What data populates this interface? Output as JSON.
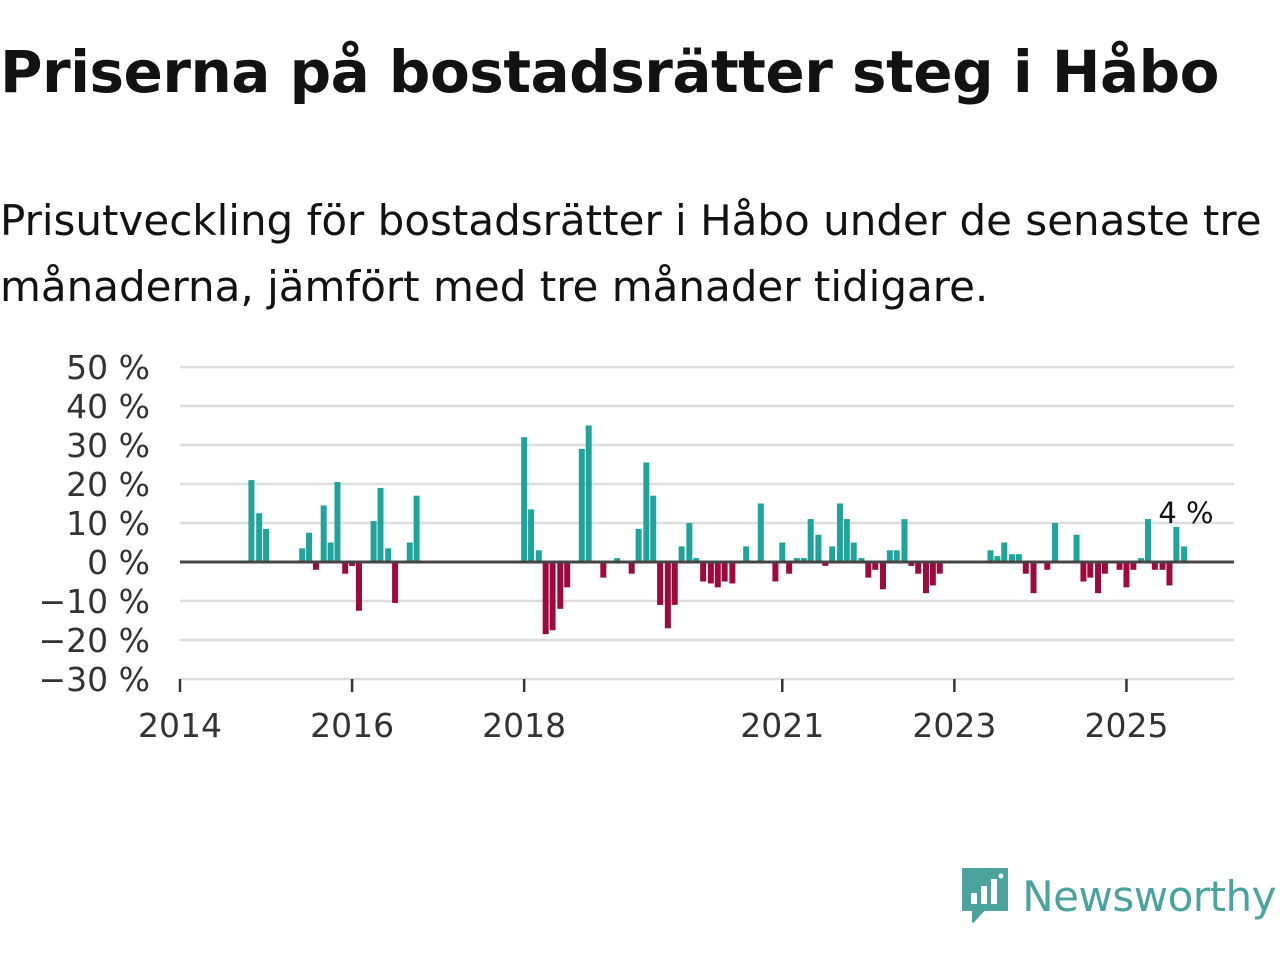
{
  "title": "Priserna på bostadsrätter steg i Håbo",
  "subtitle": "Prisutveckling för bostadsrätter i Håbo under de senaste tre månaderna, jämfört med tre månader tidigare.",
  "logo": {
    "text": "Newsworthy",
    "icon": "newsworthy-logo-icon"
  },
  "colors": {
    "positive": "#20a39a",
    "negative": "#9e0a3e",
    "grid": "#dddddd",
    "zero_line": "#444444",
    "brand": "#4aa39c"
  },
  "chart_data": {
    "type": "bar",
    "title": "Priserna på bostadsrätter steg i Håbo",
    "xlabel": "",
    "ylabel": "",
    "ylim": [
      -30,
      50
    ],
    "yticks": [
      50,
      40,
      30,
      20,
      10,
      0,
      -10,
      -20,
      -30
    ],
    "ytick_labels": [
      "50 %",
      "40 %",
      "30 %",
      "20 %",
      "10 %",
      "0 %",
      "−10 %",
      "−20 %",
      "−30 %"
    ],
    "x_range": [
      2014.0,
      2026.25
    ],
    "xticks": [
      2014,
      2016,
      2018,
      2021,
      2023,
      2025
    ],
    "xtick_labels": [
      "2014",
      "2016",
      "2018",
      "2021",
      "2023",
      "2025"
    ],
    "x": [
      2014.83,
      2014.92,
      2015.0,
      2015.42,
      2015.5,
      2015.58,
      2015.67,
      2015.75,
      2015.83,
      2015.92,
      2016.0,
      2016.08,
      2016.25,
      2016.33,
      2016.42,
      2016.5,
      2016.67,
      2016.75,
      2018.0,
      2018.08,
      2018.17,
      2018.25,
      2018.33,
      2018.42,
      2018.5,
      2018.67,
      2018.75,
      2018.92,
      2019.08,
      2019.25,
      2019.33,
      2019.42,
      2019.5,
      2019.58,
      2019.67,
      2019.75,
      2019.83,
      2019.92,
      2020.0,
      2020.08,
      2020.17,
      2020.25,
      2020.33,
      2020.42,
      2020.58,
      2020.75,
      2020.92,
      2021.0,
      2021.08,
      2021.17,
      2021.25,
      2021.33,
      2021.42,
      2021.5,
      2021.58,
      2021.67,
      2021.75,
      2021.83,
      2021.92,
      2022.0,
      2022.08,
      2022.17,
      2022.25,
      2022.33,
      2022.42,
      2022.5,
      2022.58,
      2022.67,
      2022.75,
      2022.83,
      2023.42,
      2023.5,
      2023.58,
      2023.67,
      2023.75,
      2023.83,
      2023.92,
      2024.08,
      2024.17,
      2024.42,
      2024.5,
      2024.58,
      2024.67,
      2024.75,
      2024.92,
      2025.0,
      2025.08,
      2025.17,
      2025.25,
      2025.33,
      2025.42,
      2025.5,
      2025.58,
      2025.67
    ],
    "values": [
      21,
      12.5,
      8.5,
      3.5,
      7.5,
      -2,
      14.5,
      5,
      20.5,
      -3,
      -1,
      -12.5,
      10.5,
      19,
      3.5,
      -10.5,
      5,
      17,
      32,
      13.5,
      3,
      -18.5,
      -17.5,
      -12,
      -6.5,
      29,
      35,
      -4,
      1,
      -3,
      8.5,
      25.5,
      17,
      -11,
      -17,
      -11,
      4,
      10,
      1,
      -5,
      -5.5,
      -6.5,
      -5,
      -5.5,
      4,
      15,
      -5,
      5,
      -3,
      1,
      1,
      11,
      7,
      -1,
      4,
      15,
      11,
      5,
      1,
      -4,
      -2,
      -7,
      3,
      3,
      11,
      -1,
      -3,
      -8,
      -6,
      -3,
      3,
      1.5,
      5,
      2,
      2,
      -3,
      -8,
      -2,
      10,
      7,
      -5,
      -4,
      -8,
      -3,
      -2,
      -6.5,
      -2,
      1,
      11,
      -2,
      -2,
      -6,
      9,
      4
    ],
    "annotations": [
      {
        "x": 2025.58,
        "y": 9,
        "text": "4 %"
      }
    ]
  }
}
